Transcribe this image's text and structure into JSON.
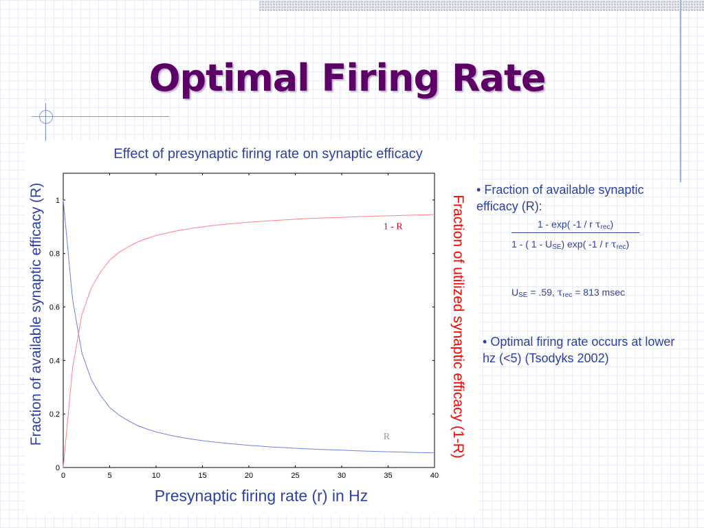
{
  "slide": {
    "title": "Optimal Firing Rate"
  },
  "chart_data": {
    "type": "line",
    "title": "Effect of presynaptic firing rate on synaptic efficacy",
    "xlabel": "Presynaptic firing rate (r) in Hz",
    "ylabel": "Fraction of available synaptic efficacy (R)",
    "ylabel_right": "Fraction of utilized synaptic efficacy (1-R)",
    "xlim": [
      0,
      40
    ],
    "ylim": [
      0,
      1.1
    ],
    "xticks": [
      "0",
      "5",
      "10",
      "15",
      "20",
      "25",
      "30",
      "35",
      "40"
    ],
    "yticks": [
      "0",
      "0.2",
      "0.4",
      "0.6",
      "0.8",
      "1"
    ],
    "x": [
      0,
      1,
      2,
      3,
      4,
      5,
      6,
      7,
      8,
      9,
      10,
      12,
      14,
      16,
      18,
      20,
      22,
      24,
      26,
      28,
      30,
      32,
      34,
      36,
      38,
      40
    ],
    "series": [
      {
        "name": "R",
        "color": "#6c7fe0",
        "values": [
          1.0,
          0.63,
          0.43,
          0.33,
          0.27,
          0.225,
          0.196,
          0.175,
          0.157,
          0.144,
          0.133,
          0.117,
          0.105,
          0.096,
          0.089,
          0.083,
          0.078,
          0.074,
          0.07,
          0.067,
          0.065,
          0.062,
          0.06,
          0.058,
          0.056,
          0.055
        ]
      },
      {
        "name": "1 - R",
        "color": "#ff7f86",
        "values": [
          0.0,
          0.37,
          0.57,
          0.67,
          0.73,
          0.775,
          0.804,
          0.825,
          0.843,
          0.856,
          0.867,
          0.883,
          0.895,
          0.904,
          0.911,
          0.917,
          0.922,
          0.926,
          0.93,
          0.933,
          0.935,
          0.938,
          0.94,
          0.942,
          0.944,
          0.945
        ]
      }
    ],
    "annotations": [
      {
        "text": "1 - R",
        "color": "#e0001a",
        "x": 34.5,
        "y": 0.89
      },
      {
        "text": "R",
        "color": "#999999",
        "x": 34.5,
        "y": 0.105
      }
    ]
  },
  "info": {
    "bullet_symbol": "•",
    "bullet1": "Fraction of available synaptic efficacy (R):",
    "formula_num_a": "1 - exp( -1 / r ",
    "formula_sub_rec": "rec",
    "formula_close": ")",
    "formula_den_a": "1 - ( 1 - U",
    "formula_sub_se": "SE",
    "formula_den_b": ") exp( -1 / r ",
    "params_u": "U",
    "params_mid": " = .59, ",
    "params_end": " = 813 msec",
    "tau": "τ",
    "bullet2": "Optimal firing rate occurs at lower hz (<5) (Tsodyks 2002)"
  }
}
